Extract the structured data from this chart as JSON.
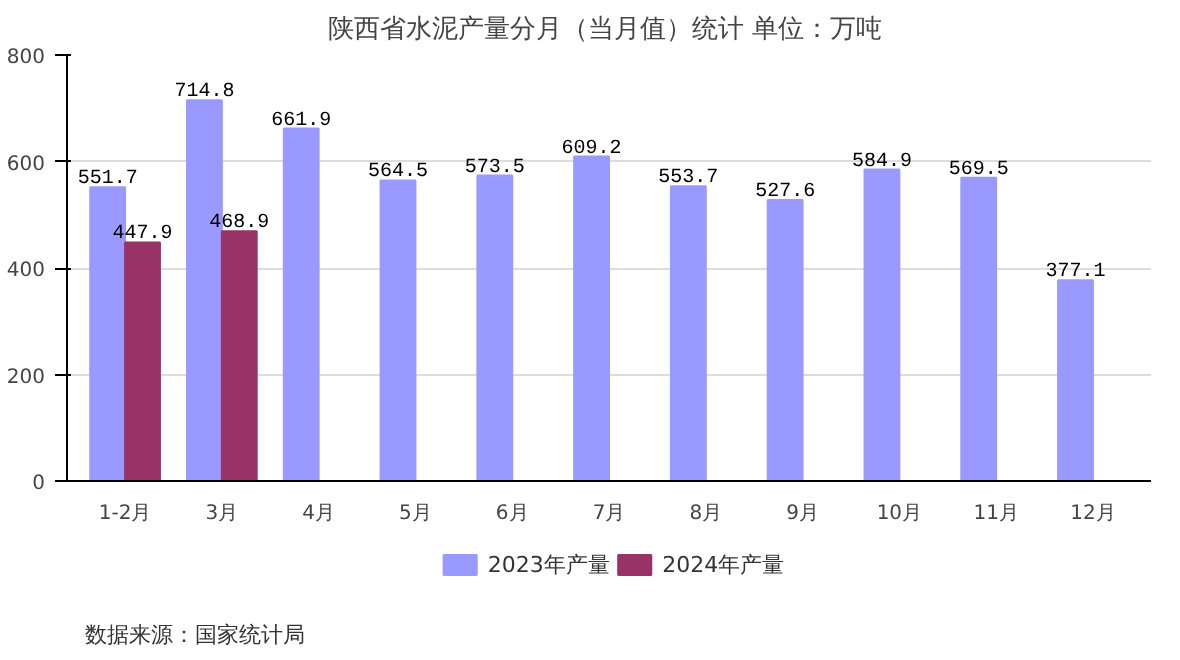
{
  "chart_data": {
    "type": "bar",
    "title": "陕西省水泥产量分月（当月值）统计  单位：万吨",
    "categories": [
      "1-2月",
      "3月",
      "4月",
      "5月",
      "6月",
      "7月",
      "8月",
      "9月",
      "10月",
      "11月",
      "12月"
    ],
    "series": [
      {
        "name": "2023年产量",
        "color": "#9999ff",
        "values": [
          551.7,
          714.8,
          661.9,
          564.5,
          573.5,
          609.2,
          553.7,
          527.6,
          584.9,
          569.5,
          377.1
        ]
      },
      {
        "name": "2024年产量",
        "color": "#993366",
        "values": [
          447.9,
          468.9,
          null,
          null,
          null,
          null,
          null,
          null,
          null,
          null,
          null
        ]
      }
    ],
    "ylim": [
      0,
      800
    ],
    "yticks": [
      0,
      200,
      400,
      600,
      800
    ],
    "grid": "y",
    "legend": "bottom",
    "data_labels": true,
    "annotations": [
      "数据来源：国家统计局"
    ]
  }
}
